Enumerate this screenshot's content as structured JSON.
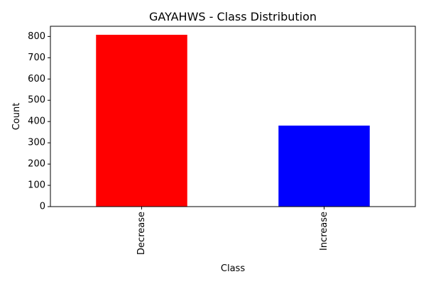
{
  "chart_data": {
    "type": "bar",
    "title": "GAYAHWS - Class Distribution",
    "xlabel": "Class",
    "ylabel": "Count",
    "categories": [
      "Decrease",
      "Increase"
    ],
    "values": [
      808,
      381
    ],
    "colors": [
      "#ff0000",
      "#0000ff"
    ],
    "ylim": [
      0,
      848
    ],
    "yticks": [
      0,
      100,
      200,
      300,
      400,
      500,
      600,
      700,
      800
    ],
    "grid": false,
    "legend": "none"
  }
}
